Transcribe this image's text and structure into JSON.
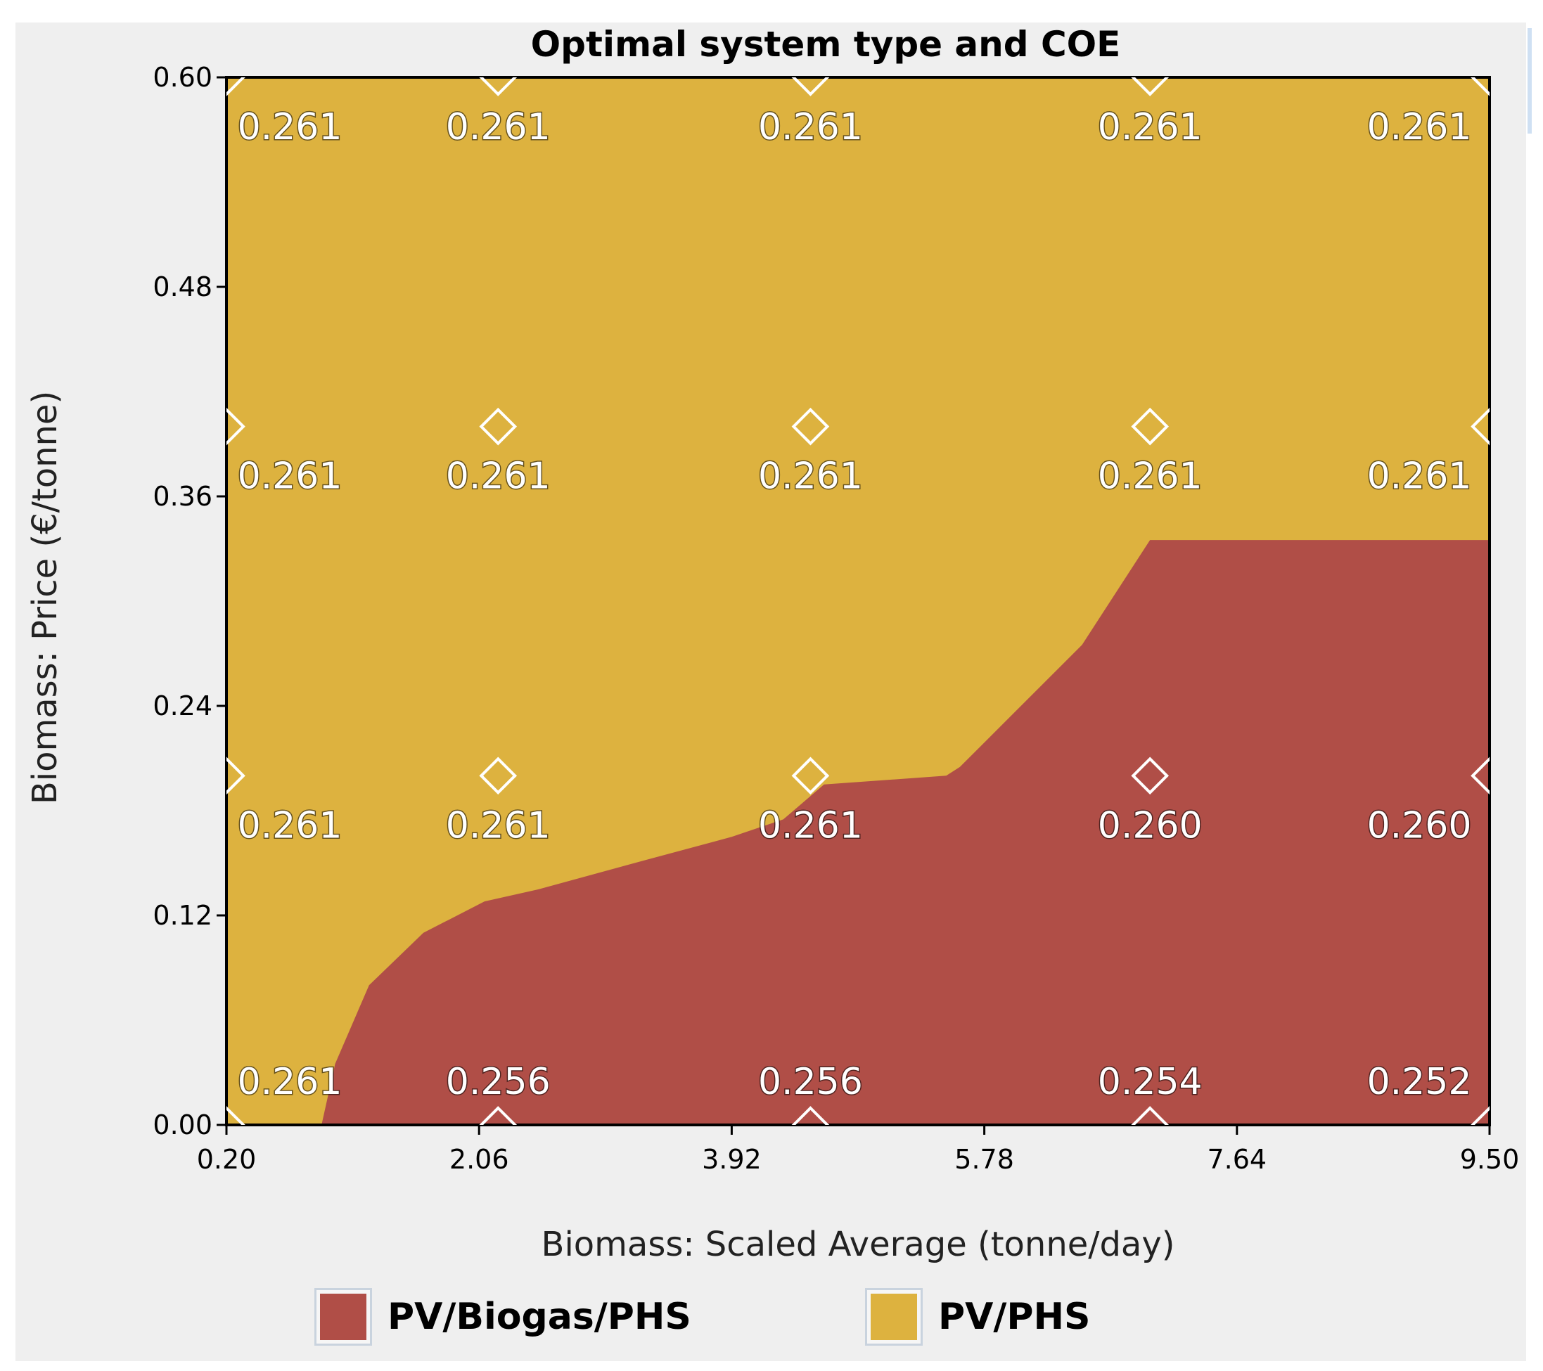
{
  "chart_data": {
    "type": "heatmap",
    "title": "Optimal system type and COE",
    "xlabel": "Biomass: Scaled Average (tonne/day)",
    "ylabel": "Biomass: Price (€/tonne)",
    "xlim": [
      0.2,
      9.5
    ],
    "ylim": [
      0.0,
      0.6
    ],
    "x_ticks": [
      "0.20",
      "2.06",
      "3.92",
      "5.78",
      "7.64",
      "9.50"
    ],
    "y_ticks": [
      "0.00",
      "0.12",
      "0.24",
      "0.36",
      "0.48",
      "0.60"
    ],
    "categories": [
      {
        "name": "PV/Biogas/PHS",
        "color": "#b04e47"
      },
      {
        "name": "PV/PHS",
        "color": "#ddb23f"
      }
    ],
    "boundary": [
      {
        "x": 0.9,
        "y": 0.0
      },
      {
        "x": 1.0,
        "y": 0.035
      },
      {
        "x": 1.25,
        "y": 0.08
      },
      {
        "x": 1.65,
        "y": 0.11
      },
      {
        "x": 2.1,
        "y": 0.128
      },
      {
        "x": 2.5,
        "y": 0.135
      },
      {
        "x": 3.3,
        "y": 0.152
      },
      {
        "x": 3.92,
        "y": 0.165
      },
      {
        "x": 4.3,
        "y": 0.175
      },
      {
        "x": 4.6,
        "y": 0.195
      },
      {
        "x": 5.5,
        "y": 0.2
      },
      {
        "x": 5.6,
        "y": 0.205
      },
      {
        "x": 6.5,
        "y": 0.275
      },
      {
        "x": 7.0,
        "y": 0.335
      },
      {
        "x": 9.5,
        "y": 0.335
      }
    ],
    "sample_x": [
      0.2,
      2.2,
      4.5,
      7.0,
      9.5
    ],
    "sample_y": [
      0.0,
      0.2,
      0.4,
      0.6
    ],
    "points": [
      {
        "x": 0.2,
        "y": 0.6,
        "label": "0.261"
      },
      {
        "x": 2.2,
        "y": 0.6,
        "label": "0.261"
      },
      {
        "x": 4.5,
        "y": 0.6,
        "label": "0.261"
      },
      {
        "x": 7.0,
        "y": 0.6,
        "label": "0.261"
      },
      {
        "x": 9.5,
        "y": 0.6,
        "label": "0.261"
      },
      {
        "x": 0.2,
        "y": 0.4,
        "label": "0.261"
      },
      {
        "x": 2.2,
        "y": 0.4,
        "label": "0.261"
      },
      {
        "x": 4.5,
        "y": 0.4,
        "label": "0.261"
      },
      {
        "x": 7.0,
        "y": 0.4,
        "label": "0.261"
      },
      {
        "x": 9.5,
        "y": 0.4,
        "label": "0.261"
      },
      {
        "x": 0.2,
        "y": 0.2,
        "label": "0.261"
      },
      {
        "x": 2.2,
        "y": 0.2,
        "label": "0.261"
      },
      {
        "x": 4.5,
        "y": 0.2,
        "label": "0.261"
      },
      {
        "x": 7.0,
        "y": 0.2,
        "label": "0.260"
      },
      {
        "x": 9.5,
        "y": 0.2,
        "label": "0.260"
      },
      {
        "x": 0.2,
        "y": 0.0,
        "label": "0.261"
      },
      {
        "x": 2.2,
        "y": 0.0,
        "label": "0.256"
      },
      {
        "x": 4.5,
        "y": 0.0,
        "label": "0.256"
      },
      {
        "x": 7.0,
        "y": 0.0,
        "label": "0.254"
      },
      {
        "x": 9.5,
        "y": 0.0,
        "label": "0.252"
      }
    ]
  },
  "legend": {
    "items": [
      {
        "label": "PV/Biogas/PHS",
        "color": "#b04e47"
      },
      {
        "label": "PV/PHS",
        "color": "#ddb23f"
      }
    ]
  }
}
